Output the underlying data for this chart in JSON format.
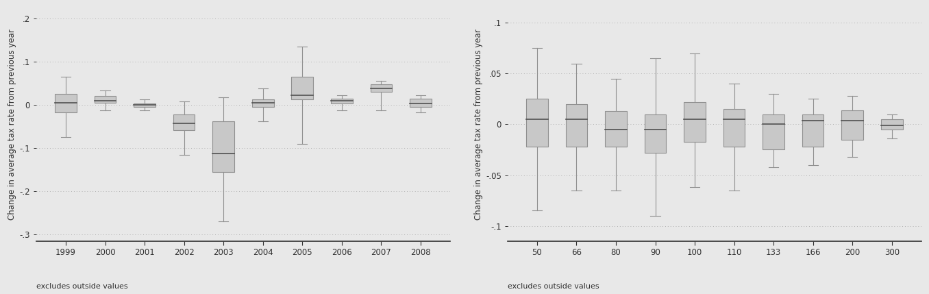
{
  "left_panel": {
    "categories": [
      "1999",
      "2000",
      "2001",
      "2002",
      "2003",
      "2004",
      "2005",
      "2006",
      "2007",
      "2008"
    ],
    "boxes": [
      {
        "whislo": -0.075,
        "q1": -0.018,
        "med": 0.005,
        "q3": 0.025,
        "whishi": 0.065
      },
      {
        "whislo": -0.012,
        "q1": 0.005,
        "med": 0.01,
        "q3": 0.02,
        "whishi": 0.033
      },
      {
        "whislo": -0.013,
        "q1": -0.004,
        "med": 0.0,
        "q3": 0.004,
        "whishi": 0.013
      },
      {
        "whislo": -0.115,
        "q1": -0.058,
        "med": -0.042,
        "q3": -0.022,
        "whishi": 0.008
      },
      {
        "whislo": -0.27,
        "q1": -0.155,
        "med": -0.112,
        "q3": -0.038,
        "whishi": 0.018
      },
      {
        "whislo": -0.038,
        "q1": -0.004,
        "med": 0.005,
        "q3": 0.013,
        "whishi": 0.038
      },
      {
        "whislo": -0.09,
        "q1": 0.012,
        "med": 0.022,
        "q3": 0.065,
        "whishi": 0.135
      },
      {
        "whislo": -0.012,
        "q1": 0.004,
        "med": 0.009,
        "q3": 0.014,
        "whishi": 0.022
      },
      {
        "whislo": -0.012,
        "q1": 0.03,
        "med": 0.038,
        "q3": 0.048,
        "whishi": 0.056
      },
      {
        "whislo": -0.018,
        "q1": -0.004,
        "med": 0.004,
        "q3": 0.014,
        "whishi": 0.022
      }
    ],
    "ylim": [
      -0.315,
      0.225
    ],
    "yticks": [
      0.2,
      0.1,
      0.0,
      -0.1,
      -0.2,
      -0.3
    ],
    "yticklabels": [
      ".2",
      ".1",
      "0",
      "-.1",
      "-.2",
      "-.3"
    ],
    "ylabel": "Change in average tax rate from previous year",
    "footnote": "excludes outside values"
  },
  "right_panel": {
    "categories": [
      "50",
      "66",
      "80",
      "90",
      "100",
      "110",
      "133",
      "166",
      "200",
      "300"
    ],
    "boxes": [
      {
        "whislo": -0.085,
        "q1": -0.022,
        "med": 0.005,
        "q3": 0.025,
        "whishi": 0.075
      },
      {
        "whislo": -0.065,
        "q1": -0.022,
        "med": 0.005,
        "q3": 0.02,
        "whishi": 0.06
      },
      {
        "whislo": -0.065,
        "q1": -0.022,
        "med": -0.005,
        "q3": 0.013,
        "whishi": 0.045
      },
      {
        "whislo": -0.09,
        "q1": -0.028,
        "med": -0.005,
        "q3": 0.01,
        "whishi": 0.065
      },
      {
        "whislo": -0.062,
        "q1": -0.017,
        "med": 0.005,
        "q3": 0.022,
        "whishi": 0.07
      },
      {
        "whislo": -0.065,
        "q1": -0.022,
        "med": 0.005,
        "q3": 0.015,
        "whishi": 0.04
      },
      {
        "whislo": -0.042,
        "q1": -0.025,
        "med": 0.0,
        "q3": 0.01,
        "whishi": 0.03
      },
      {
        "whislo": -0.04,
        "q1": -0.022,
        "med": 0.004,
        "q3": 0.01,
        "whishi": 0.025
      },
      {
        "whislo": -0.032,
        "q1": -0.015,
        "med": 0.004,
        "q3": 0.014,
        "whishi": 0.028
      },
      {
        "whislo": -0.014,
        "q1": -0.005,
        "med": -0.001,
        "q3": 0.005,
        "whishi": 0.01
      }
    ],
    "ylim": [
      -0.115,
      0.115
    ],
    "yticks": [
      0.1,
      0.05,
      0.0,
      -0.05,
      -0.1
    ],
    "yticklabels": [
      ".1",
      ".05",
      "0",
      "-.05",
      "-.1"
    ],
    "ylabel": "Change in average tax rate from previous year",
    "footnote": "excludes outside values"
  },
  "box_color": "#c8c8c8",
  "box_edge_color": "#909090",
  "whisker_color": "#909090",
  "median_color": "#505050",
  "background_color": "#e8e8e8",
  "grid_color": "#b0b0b0",
  "font_size": 8.5,
  "footnote_font_size": 8,
  "tick_label_color": "#303030",
  "spine_color": "#303030"
}
